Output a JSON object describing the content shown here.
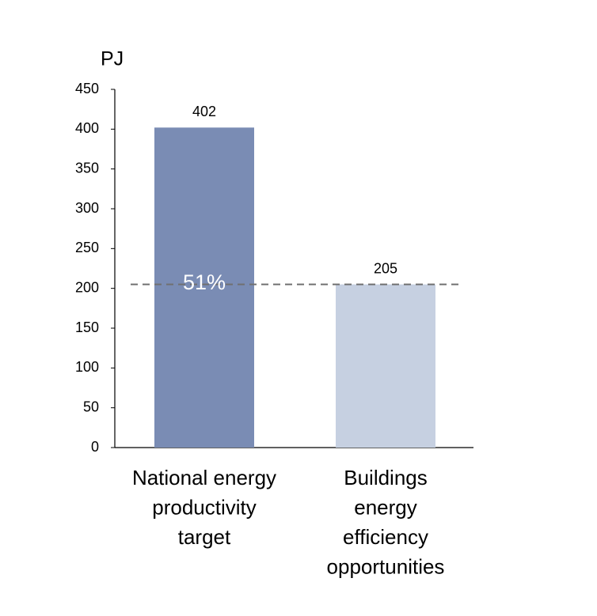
{
  "chart_data": {
    "type": "bar",
    "y_label": "PJ",
    "categories": [
      [
        "National energy",
        "productivity",
        "target"
      ],
      [
        "Buildings",
        "energy",
        "efficiency",
        "opportunities"
      ]
    ],
    "values": [
      402,
      205
    ],
    "colors": [
      "#7a8cb4",
      "#c6d0e1"
    ],
    "annotation": "51%",
    "reference_line_color": "#707070",
    "ylim": [
      0,
      450
    ],
    "yticks": [
      0,
      50,
      100,
      150,
      200,
      250,
      300,
      350,
      400,
      450
    ]
  }
}
